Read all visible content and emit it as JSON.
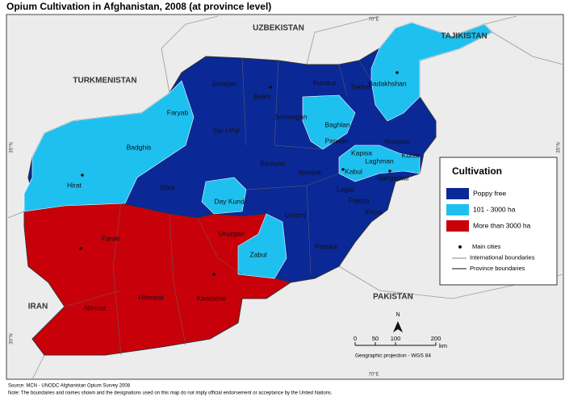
{
  "title": "Opium Cultivation in Afghanistan, 2008 (at province level)",
  "countries": [
    "UZBEKISTAN",
    "TAJIKISTAN",
    "TURKMENISTAN",
    "IRAN",
    "PAKISTAN"
  ],
  "provinces": [
    "Jawzjan",
    "Balkh",
    "Kunduz",
    "Takhar",
    "Badakhshan",
    "Faryab",
    "Samangan",
    "Baghlan",
    "Sar-i-Pul",
    "Badghis",
    "Parwan",
    "Nuristan",
    "Kapisa",
    "Kunar",
    "Laghman",
    "Kabul",
    "Nangarhar",
    "Bamyan",
    "Hirat",
    "Ghor",
    "Wardak",
    "Logar",
    "Paktya",
    "Day Kundi",
    "Khost",
    "Ghazni",
    "Uruzgan",
    "Farah",
    "Paktika",
    "Zabul",
    "Nimroz",
    "Hilmand",
    "Kandahar"
  ],
  "graticule": [
    "70°E",
    "35°N",
    "30°N"
  ],
  "legend": {
    "title": "Cultivation",
    "items": [
      {
        "label": "Poppy free",
        "color": "#0a2896"
      },
      {
        "label": "101 - 3000 ha",
        "color": "#1ec0f0"
      },
      {
        "label": "More than 3000 ha",
        "color": "#c8000a"
      }
    ],
    "symbols": [
      "Main cities",
      "International boundaries",
      "Province boundaries"
    ]
  },
  "north": "N",
  "scale": {
    "ticks": [
      0,
      50,
      100,
      200
    ],
    "unit": "km"
  },
  "projection": "Geographic projection - WGS 84",
  "source": [
    "Source: MCN - UNODC Afghanistan Opium Survey 2008",
    "Note: The boundaries and names shown and the designations used on this map do not imply official endorsement or acceptance by the United Nations."
  ]
}
